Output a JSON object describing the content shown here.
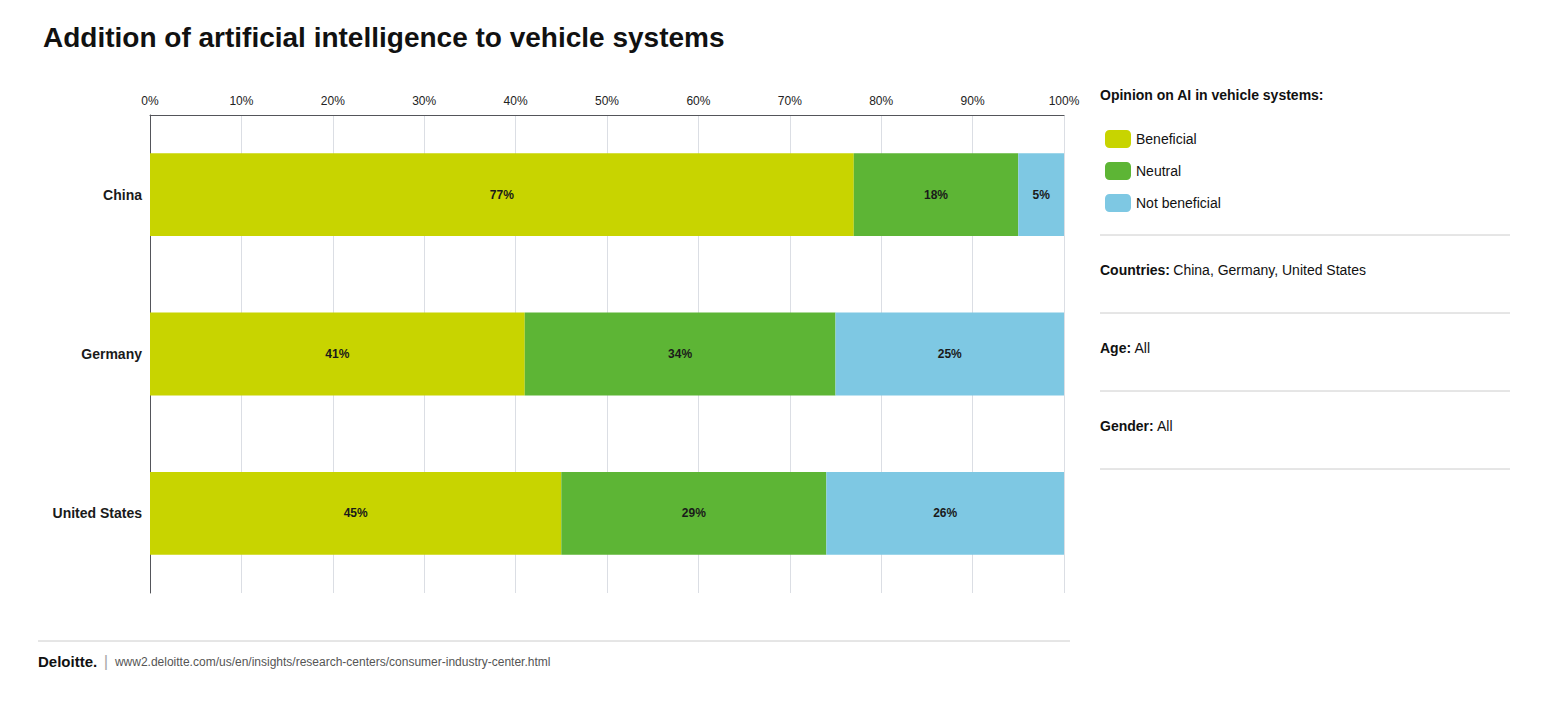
{
  "chart_data": {
    "type": "bar",
    "title": "Addition of artificial intelligence to vehicle systems",
    "orientation": "horizontal",
    "stacked": true,
    "data_labels": true,
    "grid": true,
    "legend": "right",
    "legend_title": "Opinion on AI in vehicle systems:",
    "categories": [
      "China",
      "Germany",
      "United States"
    ],
    "series": [
      {
        "name": "Beneficial",
        "color": "#c8d400",
        "values": [
          77,
          41,
          45
        ],
        "value_labels": [
          "77%",
          "41%",
          "45%"
        ]
      },
      {
        "name": "Neutral",
        "color": "#5db535",
        "values": [
          18,
          34,
          29
        ],
        "value_labels": [
          "18%",
          "34%",
          "29%"
        ]
      },
      {
        "name": "Not beneficial",
        "color": "#7ec8e3",
        "values": [
          5,
          25,
          26
        ],
        "value_labels": [
          "5%",
          "25%",
          "26%"
        ]
      }
    ],
    "xlim": [
      0,
      100
    ],
    "xticks": [
      {
        "value": 0,
        "label": "0%"
      },
      {
        "value": 10,
        "label": "10%"
      },
      {
        "value": 20,
        "label": "20%"
      },
      {
        "value": 30,
        "label": "30%"
      },
      {
        "value": 40,
        "label": "40%"
      },
      {
        "value": 50,
        "label": "50%"
      },
      {
        "value": 60,
        "label": "60%"
      },
      {
        "value": 70,
        "label": "70%"
      },
      {
        "value": 80,
        "label": "80%"
      },
      {
        "value": 90,
        "label": "90%"
      },
      {
        "value": 100,
        "label": "100%"
      }
    ],
    "annotations": [
      [
        "Countries:",
        "China, Germany, United States"
      ],
      [
        "Age:",
        "All"
      ],
      [
        "Gender:",
        "All"
      ],
      [
        "Deloitte.",
        "|",
        "www2.deloitte.com/us/en/insights/research-centers/consumer-industry-center.html"
      ]
    ]
  }
}
